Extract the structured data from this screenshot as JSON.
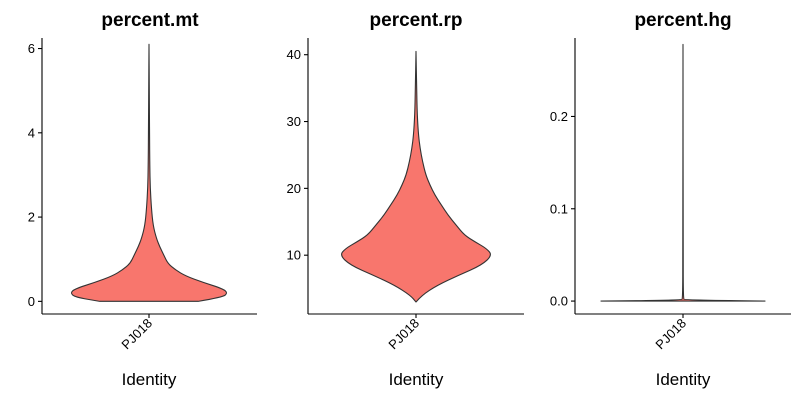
{
  "chart_data": [
    {
      "type": "violin",
      "title": "percent.mt",
      "xlabel": "Identity",
      "ylabel": "",
      "categories": [
        "PJ018"
      ],
      "ylim": [
        -0.3,
        6.25
      ],
      "yticks": [
        0,
        2,
        4,
        6
      ],
      "ytick_labels": [
        "0",
        "2",
        "4",
        "6"
      ],
      "fill_color": "#f8766d",
      "series": [
        {
          "category": "PJ018",
          "min": 0,
          "max": 6.1,
          "density": [
            [
              0,
              0.6
            ],
            [
              0.1,
              0.9
            ],
            [
              0.2,
              0.96
            ],
            [
              0.3,
              0.9
            ],
            [
              0.45,
              0.66
            ],
            [
              0.6,
              0.45
            ],
            [
              0.75,
              0.32
            ],
            [
              0.9,
              0.23
            ],
            [
              1.1,
              0.18
            ],
            [
              1.3,
              0.13
            ],
            [
              1.5,
              0.09
            ],
            [
              1.8,
              0.05
            ],
            [
              2.2,
              0.03
            ],
            [
              2.7,
              0.015
            ],
            [
              3.2,
              0.01
            ],
            [
              4,
              0.006
            ],
            [
              5,
              0.004
            ],
            [
              6.1,
              0.0
            ]
          ]
        }
      ]
    },
    {
      "type": "violin",
      "title": "percent.rp",
      "xlabel": "Identity",
      "ylabel": "",
      "categories": [
        "PJ018"
      ],
      "ylim": [
        1.2,
        42.5
      ],
      "yticks": [
        10,
        20,
        30,
        40
      ],
      "ytick_labels": [
        "10",
        "20",
        "30",
        "40"
      ],
      "fill_color": "#f8766d",
      "series": [
        {
          "category": "PJ018",
          "min": 3,
          "max": 40.5,
          "density": [
            [
              3,
              0.0
            ],
            [
              4,
              0.07
            ],
            [
              5.5,
              0.26
            ],
            [
              7,
              0.52
            ],
            [
              8.5,
              0.8
            ],
            [
              10,
              0.93
            ],
            [
              11,
              0.86
            ],
            [
              12,
              0.72
            ],
            [
              13,
              0.59
            ],
            [
              14.5,
              0.49
            ],
            [
              16,
              0.39
            ],
            [
              17.5,
              0.31
            ],
            [
              19,
              0.23
            ],
            [
              20.5,
              0.17
            ],
            [
              22,
              0.12
            ],
            [
              24,
              0.08
            ],
            [
              26,
              0.05
            ],
            [
              28,
              0.03
            ],
            [
              31,
              0.015
            ],
            [
              35,
              0.008
            ],
            [
              40.5,
              0.0
            ]
          ]
        }
      ]
    },
    {
      "type": "violin",
      "title": "percent.hg",
      "xlabel": "Identity",
      "ylabel": "",
      "categories": [
        "PJ018"
      ],
      "ylim": [
        -0.014,
        0.285
      ],
      "yticks": [
        0,
        0.1,
        0.2
      ],
      "ytick_labels": [
        "0.0",
        "0.1",
        "0.2"
      ],
      "fill_color": "#f8766d",
      "series": [
        {
          "category": "PJ018",
          "min": 0,
          "max": 0.278,
          "density": [
            [
              0,
              1.0
            ],
            [
              0.001,
              0.02
            ],
            [
              0.003,
              0.004
            ],
            [
              0.05,
              0.002
            ],
            [
              0.278,
              0.0
            ]
          ]
        }
      ]
    }
  ]
}
